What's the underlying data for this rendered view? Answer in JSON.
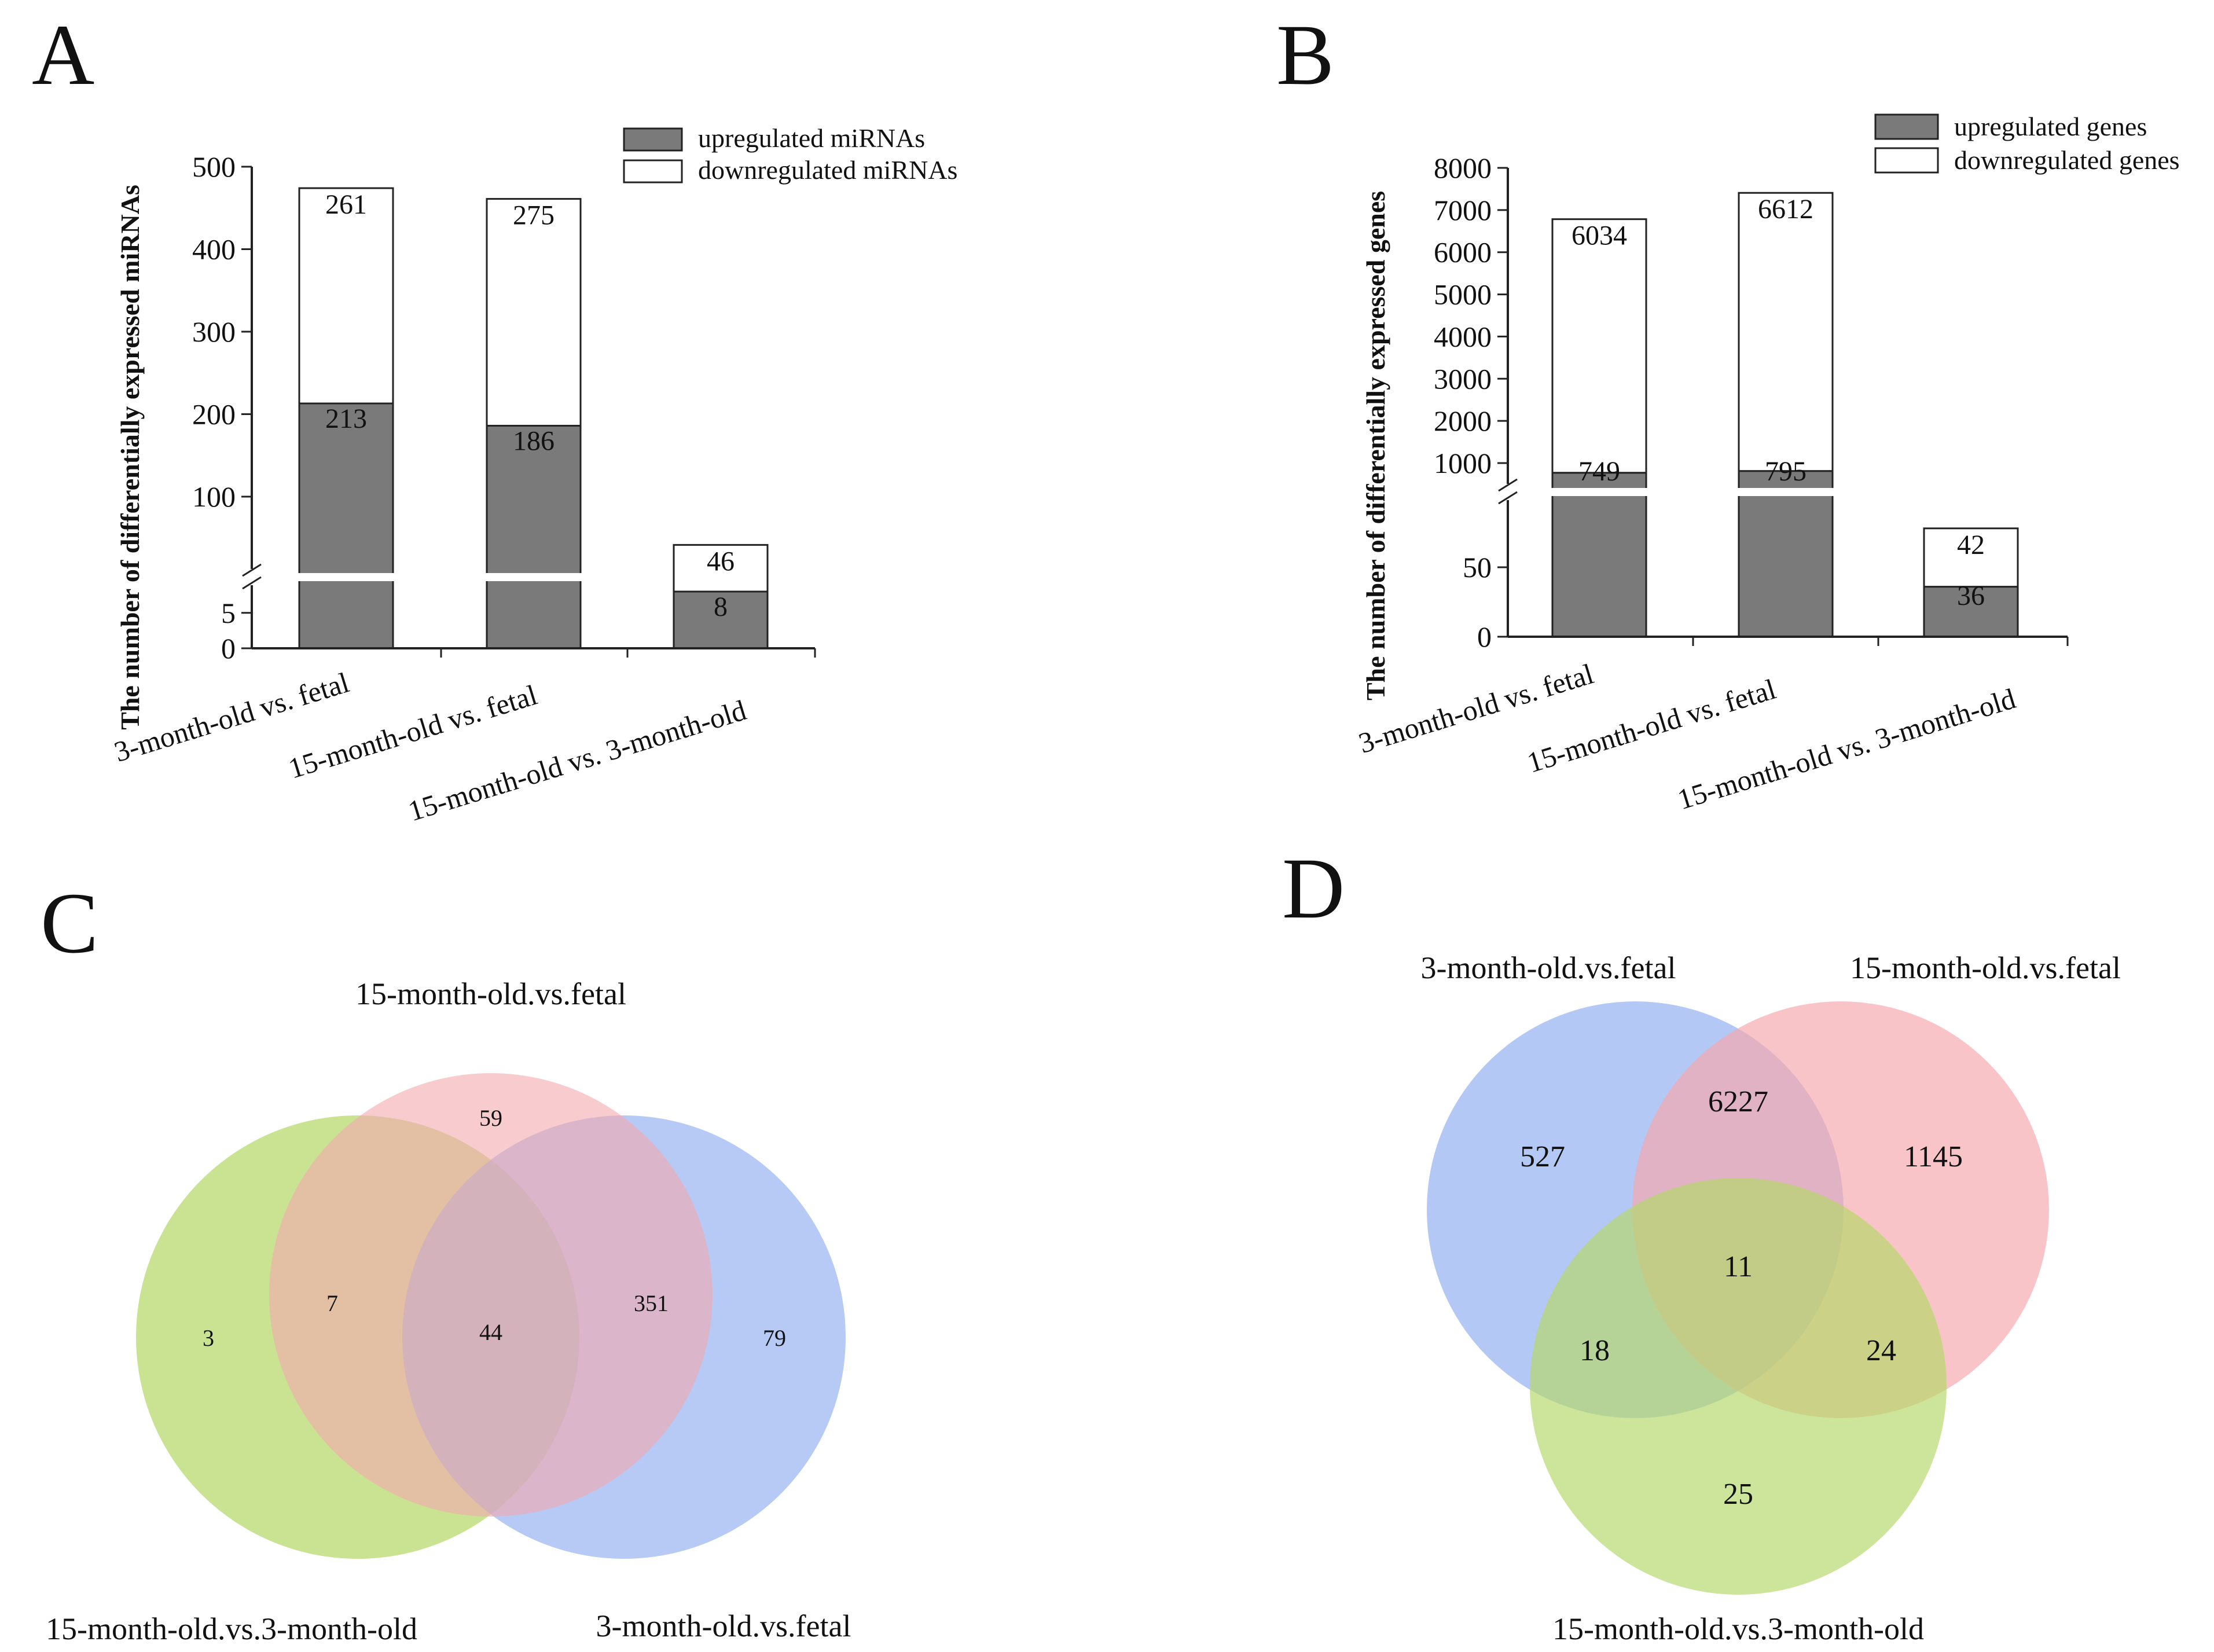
{
  "panels": {
    "A": "A",
    "B": "B",
    "C": "C",
    "D": "D"
  },
  "chart_data": [
    {
      "type": "bar",
      "stacked": true,
      "panel": "A",
      "title": "",
      "xlabel": "",
      "ylabel": "The number of differentially expressed miRNAs",
      "categories": [
        "3-month-old vs. fetal",
        "15-month-old vs. fetal",
        "15-month-old vs. 3-month-old"
      ],
      "series": [
        {
          "name": "upregulated miRNAs",
          "values": [
            213,
            186,
            8
          ],
          "color": "#7a7a7a"
        },
        {
          "name": "downregulated miRNAs",
          "values": [
            261,
            275,
            46
          ],
          "color": "#ffffff"
        }
      ],
      "axis_break": true,
      "yticks": [
        "0",
        "5",
        "100",
        "200",
        "300",
        "400",
        "500"
      ],
      "ylim": [
        0,
        500
      ],
      "grid": false,
      "legend": "top-right"
    },
    {
      "type": "bar",
      "stacked": true,
      "panel": "B",
      "title": "",
      "xlabel": "",
      "ylabel": "The number of differentially expressed genes",
      "categories": [
        "3-month-old vs. fetal",
        "15-month-old vs. fetal",
        "15-month-old vs. 3-month-old"
      ],
      "series": [
        {
          "name": "upregulated genes",
          "values": [
            749,
            795,
            36
          ],
          "color": "#7a7a7a"
        },
        {
          "name": "downregulated genes",
          "values": [
            6034,
            6612,
            42
          ],
          "color": "#ffffff"
        }
      ],
      "axis_break": true,
      "yticks": [
        "0",
        "50",
        "1000",
        "2000",
        "3000",
        "4000",
        "5000",
        "6000",
        "7000",
        "8000"
      ],
      "ylim": [
        0,
        8000
      ],
      "grid": false,
      "legend": "top-right"
    },
    {
      "type": "venn",
      "panel": "C",
      "sets": [
        {
          "name": "15-month-old.vs.fetal",
          "color": "#f4a8ad"
        },
        {
          "name": "15-month-old.vs.3-month-old",
          "color": "#b5d86a"
        },
        {
          "name": "3-month-old.vs.fetal",
          "color": "#8faeef"
        }
      ],
      "regions": {
        "only_15m_vs_fetal": "59",
        "only_15m_vs_3m": "3",
        "only_3m_vs_fetal": "79",
        "15m_vs_fetal_and_15m_vs_3m": "7",
        "15m_vs_fetal_and_3m_vs_fetal": "351",
        "all_three": "44"
      }
    },
    {
      "type": "venn",
      "panel": "D",
      "sets": [
        {
          "name": "3-month-old.vs.fetal",
          "color": "#8faeef"
        },
        {
          "name": "15-month-old.vs.fetal",
          "color": "#f4a8ad"
        },
        {
          "name": "15-month-old.vs.3-month-old",
          "color": "#b5d86a"
        }
      ],
      "regions": {
        "only_3m_vs_fetal": "527",
        "only_15m_vs_fetal": "1145",
        "only_15m_vs_3m": "25",
        "3m_vs_fetal_and_15m_vs_fetal": "6227",
        "3m_vs_fetal_and_15m_vs_3m": "18",
        "15m_vs_fetal_and_15m_vs_3m": "24",
        "all_three": "11"
      }
    }
  ]
}
